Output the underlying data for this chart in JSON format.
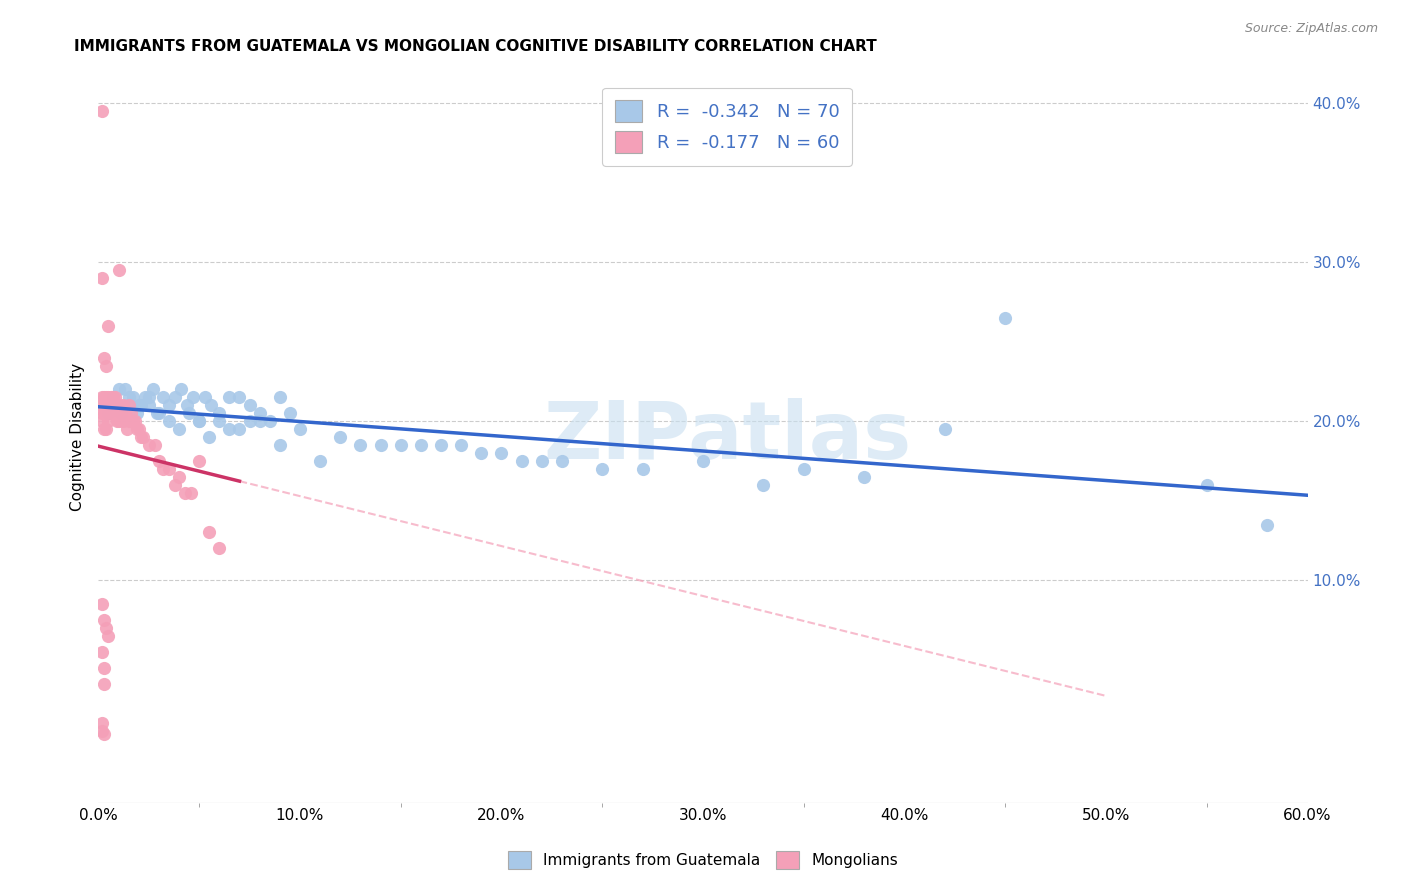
{
  "title": "IMMIGRANTS FROM GUATEMALA VS MONGOLIAN COGNITIVE DISABILITY CORRELATION CHART",
  "source": "Source: ZipAtlas.com",
  "ylabel_left": "Cognitive Disability",
  "legend_entry1": "R =  -0.342   N = 70",
  "legend_entry2": "R =  -0.177   N = 60",
  "legend_label1": "Immigrants from Guatemala",
  "legend_label2": "Mongolians",
  "blue_color": "#a8c8e8",
  "blue_line_color": "#3366cc",
  "pink_color": "#f4a0b8",
  "pink_line_color": "#cc3366",
  "pink_dash_color": "#f4a0b8",
  "watermark_color": "#c8dff0",
  "xmin": 0.0,
  "xmax": 0.6,
  "ymin": -0.04,
  "ymax": 0.42,
  "ytick_right": [
    0.1,
    0.2,
    0.3,
    0.4
  ],
  "xticks": [
    0.0,
    0.1,
    0.2,
    0.3,
    0.4,
    0.5,
    0.6
  ],
  "blue_scatter_x": [
    0.005,
    0.007,
    0.009,
    0.011,
    0.013,
    0.015,
    0.017,
    0.019,
    0.021,
    0.023,
    0.025,
    0.027,
    0.029,
    0.032,
    0.035,
    0.038,
    0.041,
    0.044,
    0.047,
    0.05,
    0.053,
    0.056,
    0.06,
    0.065,
    0.07,
    0.075,
    0.08,
    0.085,
    0.09,
    0.095,
    0.01,
    0.015,
    0.02,
    0.025,
    0.03,
    0.035,
    0.04,
    0.045,
    0.05,
    0.055,
    0.06,
    0.065,
    0.07,
    0.075,
    0.08,
    0.09,
    0.1,
    0.11,
    0.12,
    0.13,
    0.14,
    0.15,
    0.16,
    0.17,
    0.18,
    0.19,
    0.2,
    0.21,
    0.22,
    0.23,
    0.25,
    0.27,
    0.3,
    0.33,
    0.35,
    0.38,
    0.42,
    0.45,
    0.55,
    0.58
  ],
  "blue_scatter_y": [
    0.205,
    0.215,
    0.21,
    0.205,
    0.22,
    0.21,
    0.215,
    0.205,
    0.21,
    0.215,
    0.21,
    0.22,
    0.205,
    0.215,
    0.21,
    0.215,
    0.22,
    0.21,
    0.215,
    0.2,
    0.215,
    0.21,
    0.205,
    0.215,
    0.215,
    0.21,
    0.205,
    0.2,
    0.215,
    0.205,
    0.22,
    0.215,
    0.21,
    0.215,
    0.205,
    0.2,
    0.195,
    0.205,
    0.2,
    0.19,
    0.2,
    0.195,
    0.195,
    0.2,
    0.2,
    0.185,
    0.195,
    0.175,
    0.19,
    0.185,
    0.185,
    0.185,
    0.185,
    0.185,
    0.185,
    0.18,
    0.18,
    0.175,
    0.175,
    0.175,
    0.17,
    0.17,
    0.175,
    0.16,
    0.17,
    0.165,
    0.195,
    0.265,
    0.16,
    0.135
  ],
  "pink_scatter_x": [
    0.002,
    0.002,
    0.002,
    0.002,
    0.003,
    0.003,
    0.003,
    0.003,
    0.004,
    0.004,
    0.004,
    0.005,
    0.005,
    0.005,
    0.006,
    0.006,
    0.007,
    0.007,
    0.008,
    0.008,
    0.009,
    0.009,
    0.01,
    0.01,
    0.011,
    0.012,
    0.012,
    0.013,
    0.014,
    0.015,
    0.015,
    0.016,
    0.017,
    0.018,
    0.019,
    0.02,
    0.021,
    0.022,
    0.025,
    0.028,
    0.03,
    0.032,
    0.035,
    0.038,
    0.04,
    0.043,
    0.046,
    0.05,
    0.055,
    0.06,
    0.002,
    0.002,
    0.003,
    0.003,
    0.004,
    0.005,
    0.003,
    0.002,
    0.002,
    0.003
  ],
  "pink_scatter_y": [
    0.215,
    0.21,
    0.205,
    0.2,
    0.215,
    0.21,
    0.205,
    0.195,
    0.215,
    0.205,
    0.195,
    0.215,
    0.21,
    0.2,
    0.215,
    0.205,
    0.215,
    0.205,
    0.215,
    0.205,
    0.21,
    0.2,
    0.21,
    0.2,
    0.205,
    0.21,
    0.2,
    0.205,
    0.195,
    0.21,
    0.2,
    0.205,
    0.2,
    0.2,
    0.195,
    0.195,
    0.19,
    0.19,
    0.185,
    0.185,
    0.175,
    0.17,
    0.17,
    0.16,
    0.165,
    0.155,
    0.155,
    0.175,
    0.13,
    0.12,
    0.085,
    0.055,
    0.075,
    0.045,
    0.07,
    0.065,
    0.035,
    0.01,
    0.005,
    0.003
  ],
  "pink_extra_x": [
    0.002,
    0.003,
    0.004,
    0.005,
    0.01,
    0.002
  ],
  "pink_extra_y": [
    0.29,
    0.24,
    0.235,
    0.26,
    0.295,
    0.395
  ]
}
